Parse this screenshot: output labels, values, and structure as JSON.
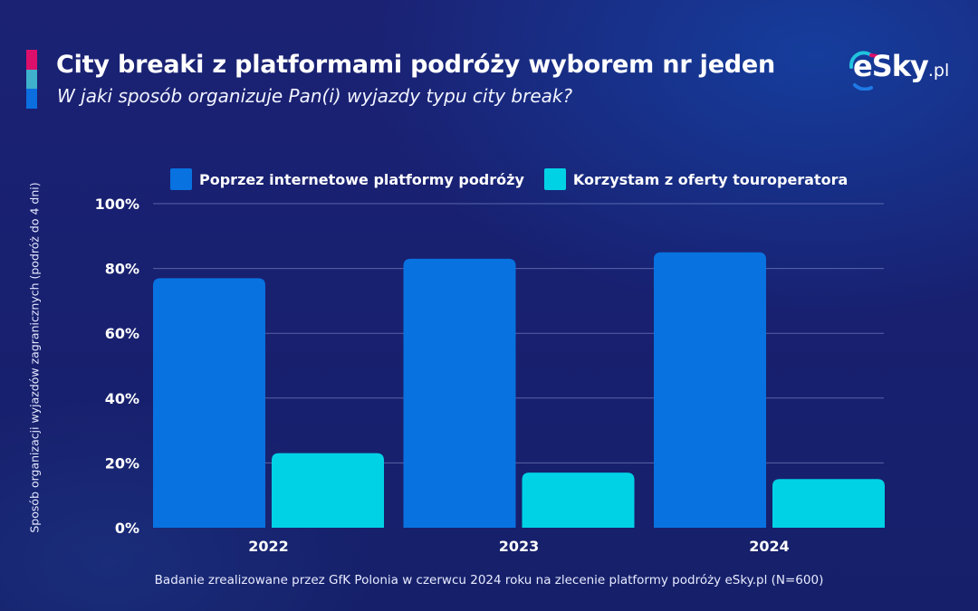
{
  "header": {
    "title": "City breaki z platformami podróży wyborem nr jeden",
    "subtitle": "W jaki sposób organizuje Pan(i) wyjazdy typu city break?",
    "logo_text": "eSky",
    "logo_suffix": ".pl"
  },
  "colors": {
    "accent_pink": "#dc0f6a",
    "accent_cyan": "#3fb1cc",
    "accent_blue": "#0b6fe0",
    "series_platform": "#0872e0",
    "series_touroperator": "#00d2e6"
  },
  "footnote": "Badanie zrealizowane przez GfK Polonia w czerwcu 2024 roku na zlecenie platformy podróży eSky.pl (N=600)",
  "chart_data": {
    "type": "bar",
    "title": "City breaki z platformami podróży wyborem nr jeden",
    "subtitle": "W jaki sposób organizuje Pan(i) wyjazdy typu city break?",
    "xlabel": "",
    "ylabel": "Sposób organizacji wyjazdów zagranicznych (podróż do 4 dni)",
    "categories": [
      "2022",
      "2023",
      "2024"
    ],
    "series": [
      {
        "name": "Poprzez internetowe platformy podróży",
        "color": "#0872e0",
        "values": [
          77,
          83,
          85
        ]
      },
      {
        "name": "Korzystam z oferty touroperatora",
        "color": "#00d2e6",
        "values": [
          23,
          17,
          15
        ]
      }
    ],
    "ylim": [
      0,
      100
    ],
    "yticks": [
      0,
      20,
      40,
      60,
      80,
      100
    ],
    "ytick_labels": [
      "0%",
      "20%",
      "40%",
      "60%",
      "80%",
      "100%"
    ],
    "grid": true,
    "legend_position": "top"
  }
}
